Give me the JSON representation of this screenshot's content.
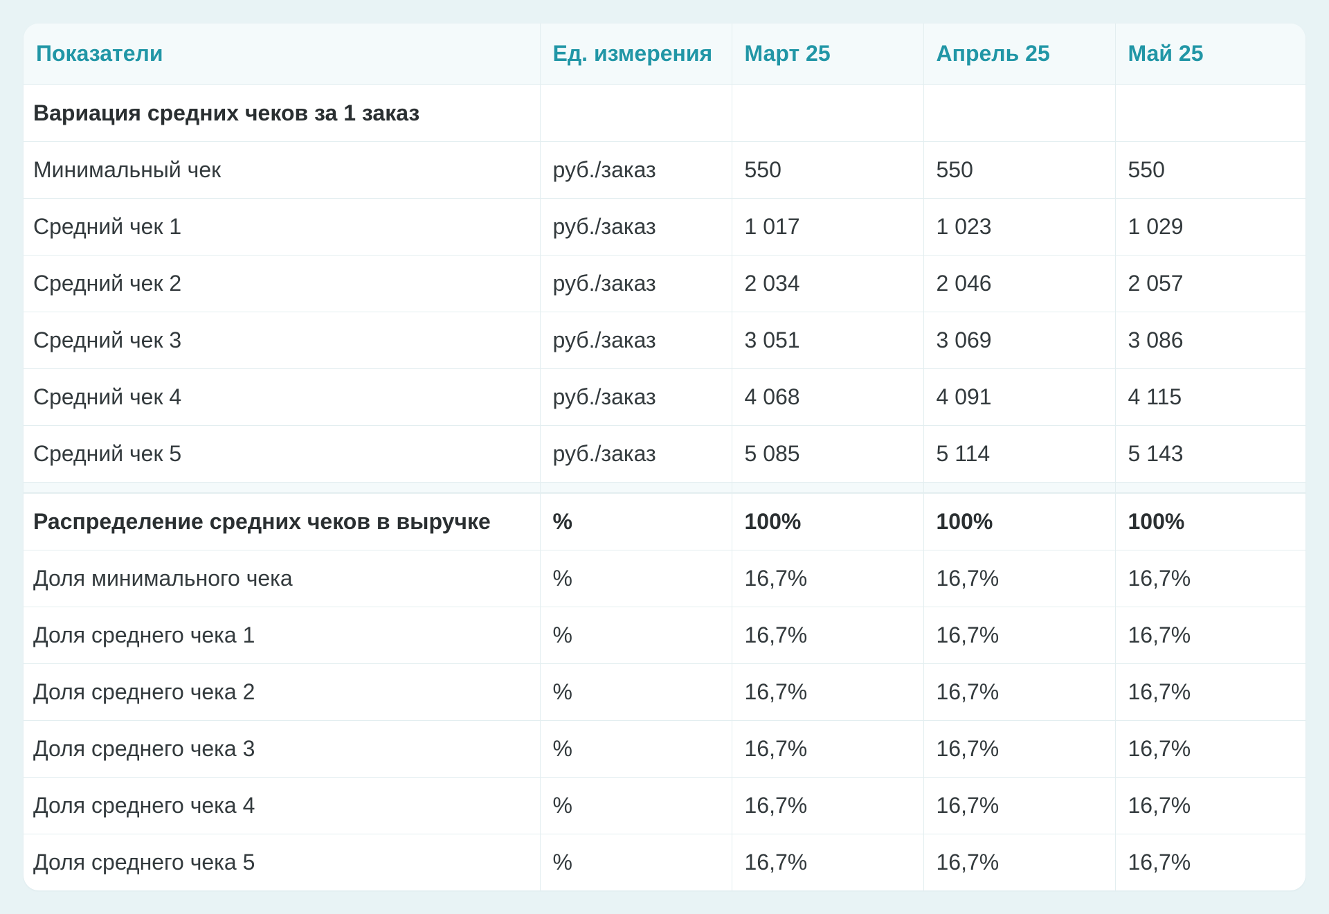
{
  "header": {
    "indicator": "Показатели",
    "unit": "Ед. измерения",
    "months": [
      "Март 25",
      "Апрель 25",
      "Май 25"
    ]
  },
  "sections": [
    {
      "title": "Вариация средних чеков за 1 заказ",
      "unit": "",
      "totals": [
        "",
        "",
        ""
      ],
      "rows": [
        {
          "label": "Минимальный чек",
          "unit": "руб./заказ",
          "values": [
            "550",
            "550",
            "550"
          ]
        },
        {
          "label": "Средний чек 1",
          "unit": "руб./заказ",
          "values": [
            "1 017",
            "1 023",
            "1 029"
          ]
        },
        {
          "label": "Средний чек 2",
          "unit": "руб./заказ",
          "values": [
            "2 034",
            "2 046",
            "2 057"
          ]
        },
        {
          "label": "Средний чек 3",
          "unit": "руб./заказ",
          "values": [
            "3 051",
            "3 069",
            "3 086"
          ]
        },
        {
          "label": "Средний чек 4",
          "unit": "руб./заказ",
          "values": [
            "4 068",
            "4 091",
            "4 115"
          ]
        },
        {
          "label": "Средний чек 5",
          "unit": "руб./заказ",
          "values": [
            "5 085",
            "5 114",
            "5 143"
          ]
        }
      ]
    },
    {
      "title": "Распределение средних чеков в выручке",
      "unit": "%",
      "totals": [
        "100%",
        "100%",
        "100%"
      ],
      "rows": [
        {
          "label": "Доля минимального чека",
          "unit": "%",
          "values": [
            "16,7%",
            "16,7%",
            "16,7%"
          ]
        },
        {
          "label": "Доля среднего чека 1",
          "unit": "%",
          "values": [
            "16,7%",
            "16,7%",
            "16,7%"
          ]
        },
        {
          "label": "Доля среднего чека 2",
          "unit": "%",
          "values": [
            "16,7%",
            "16,7%",
            "16,7%"
          ]
        },
        {
          "label": "Доля среднего чека 3",
          "unit": "%",
          "values": [
            "16,7%",
            "16,7%",
            "16,7%"
          ]
        },
        {
          "label": "Доля среднего чека 4",
          "unit": "%",
          "values": [
            "16,7%",
            "16,7%",
            "16,7%"
          ]
        },
        {
          "label": "Доля среднего чека 5",
          "unit": "%",
          "values": [
            "16,7%",
            "16,7%",
            "16,7%"
          ]
        }
      ]
    }
  ]
}
